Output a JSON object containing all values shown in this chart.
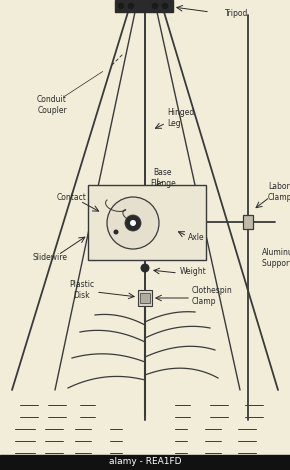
{
  "bg_color": "#f2edd8",
  "line_color": "#3a3a3a",
  "text_color": "#2a2a2a",
  "watermark_color": "#ccc5a8",
  "bottom_bar_color": "#111111",
  "bottom_text": "alamy - REA1FD",
  "labels": {
    "tripod": "Tripod",
    "conduit_coupler": "Conduit\nCoupler",
    "hinged_leg": "Hinged\nLeg",
    "contact": "Contact",
    "base_flange": "Base\nFlange",
    "laboratory_clamp": "Laboratory\nClamp",
    "axle": "Axle",
    "aluminum_support": "Aluminum\nSupport  R",
    "slidewire": "Slidewire",
    "weight": "Weight",
    "plastic_disk": "Plastic\nDisk",
    "clothespin_clamp": "Clothespin\nClamp"
  },
  "figsize": [
    2.9,
    4.7
  ],
  "dpi": 100
}
